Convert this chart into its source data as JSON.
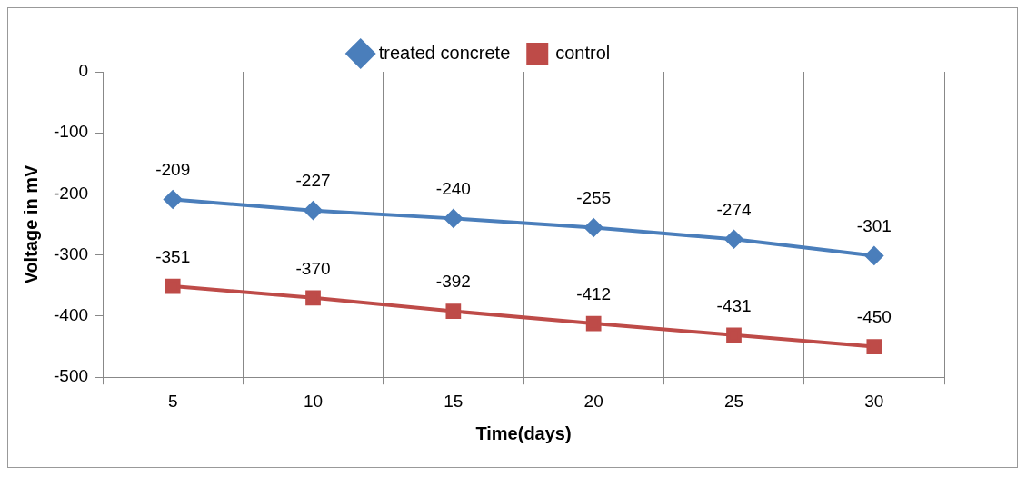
{
  "chart_data": {
    "type": "line",
    "xlabel": "Time(days)",
    "ylabel": "Voltage in mV",
    "categories": [
      "5",
      "10",
      "15",
      "20",
      "25",
      "30"
    ],
    "series": [
      {
        "name": "treated concrete",
        "color": "#4a7ebb",
        "marker": "diamond",
        "values": [
          -209,
          -227,
          -240,
          -255,
          -274,
          -301
        ]
      },
      {
        "name": "control",
        "color": "#be4b48",
        "marker": "square",
        "values": [
          -351,
          -370,
          -392,
          -412,
          -431,
          -450
        ]
      }
    ],
    "ylim": [
      -500,
      0
    ],
    "yticks": [
      -500,
      -400,
      -300,
      -200,
      -100,
      0
    ],
    "grid": "x",
    "legend": "top",
    "data_labels": true
  }
}
